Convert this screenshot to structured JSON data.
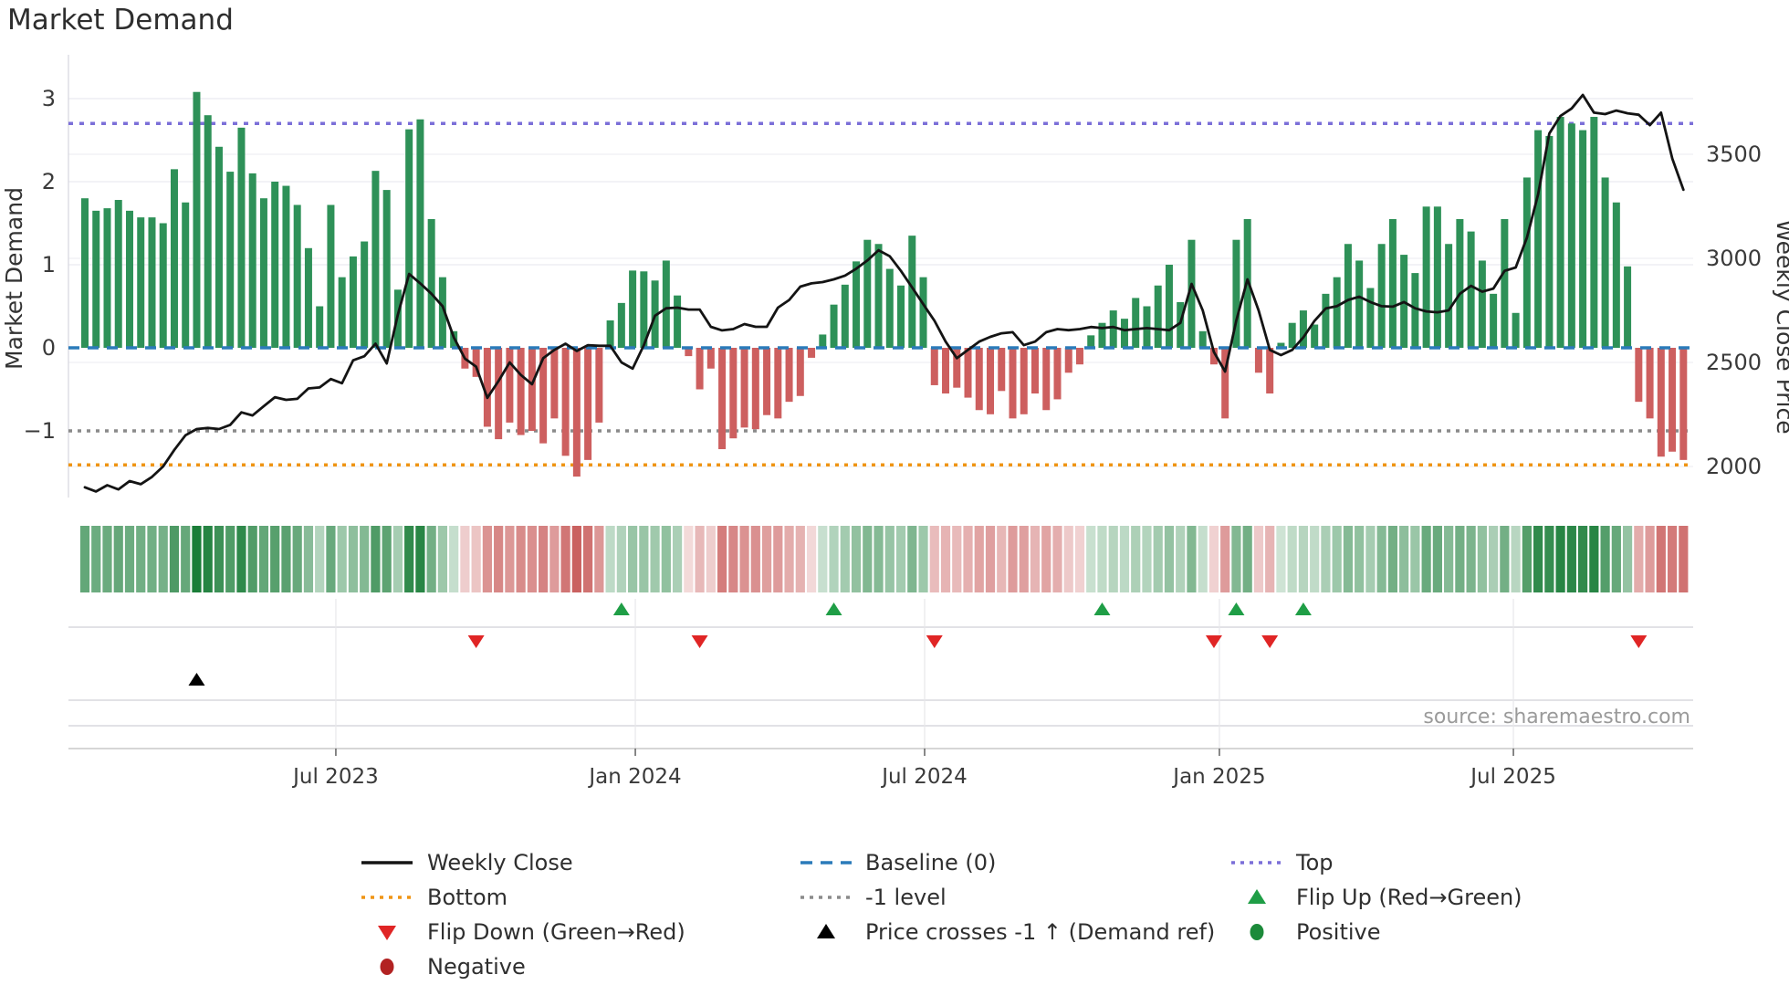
{
  "title": "Market Demand",
  "source": "source: sharemaestro.com",
  "colors": {
    "bar_positive": "#2e9158",
    "bar_negative": "#cd5f5f",
    "price_line": "#141414",
    "baseline": "#2b7bba",
    "top_line": "#7b6fd8",
    "bottom_line": "#ef9413",
    "minus_one_line": "#8a8a8a",
    "flip_up": "#1f9e46",
    "flip_down": "#e02525",
    "price_cross": "#000000",
    "positive_dot": "#1c8a3a",
    "negative_dot": "#b22222",
    "grid": "#ebebf0",
    "panel_line": "#d9d9de",
    "axis_line": "#c9c9c9",
    "axis_text": "#3a3a3a",
    "title_text": "#2e2e2e",
    "source_text": "#9a9a9a",
    "heat_green": [
      26,
      125,
      56
    ],
    "heat_red": [
      201,
      93,
      92
    ]
  },
  "chart_data": {
    "type": "bar+line",
    "title": "Market Demand",
    "frequency": "weekly",
    "yaxis_left": {
      "label": "Market Demand",
      "range": [
        -1.8,
        3.42
      ],
      "ticks": [
        {
          "v": 3,
          "label": "3"
        },
        {
          "v": 2,
          "label": "2"
        },
        {
          "v": 1,
          "label": "1"
        },
        {
          "v": 0,
          "label": "0"
        },
        {
          "v": -1,
          "label": "−1"
        }
      ]
    },
    "yaxis_right": {
      "label": "Weekly Close Price",
      "range": [
        1850,
        3935
      ],
      "ticks": [
        {
          "v": 3500,
          "label": "3500"
        },
        {
          "v": 3000,
          "label": "3000"
        },
        {
          "v": 2500,
          "label": "2500"
        },
        {
          "v": 2000,
          "label": "2000"
        }
      ]
    },
    "xaxis": {
      "ticks": [
        {
          "i": 22.45,
          "label": "Jul 2023"
        },
        {
          "i": 49.24,
          "label": "Jan 2024"
        },
        {
          "i": 75.12,
          "label": "Jul 2024"
        },
        {
          "i": 101.49,
          "label": "Jan 2025"
        },
        {
          "i": 127.79,
          "label": "Jul 2025"
        }
      ]
    },
    "reference_lines": {
      "top": 2.7,
      "baseline": 0,
      "minus_one": -1,
      "bottom": -1.41
    },
    "series": [
      {
        "name": "Market Demand",
        "type": "bar",
        "values": [
          1.8,
          1.65,
          1.68,
          1.78,
          1.65,
          1.57,
          1.57,
          1.5,
          2.15,
          1.75,
          3.08,
          2.8,
          2.42,
          2.12,
          2.65,
          2.1,
          1.8,
          2.0,
          1.95,
          1.72,
          1.2,
          0.5,
          1.72,
          0.85,
          1.1,
          1.28,
          2.13,
          1.9,
          0.7,
          2.63,
          2.75,
          1.55,
          0.85,
          0.2,
          -0.25,
          -0.35,
          -0.95,
          -1.1,
          -0.9,
          -1.05,
          -1.0,
          -1.15,
          -0.85,
          -1.3,
          -1.55,
          -1.35,
          -0.9,
          0.33,
          0.54,
          0.93,
          0.92,
          0.81,
          1.05,
          0.63,
          -0.1,
          -0.5,
          -0.25,
          -1.22,
          -1.09,
          -0.96,
          -0.98,
          -0.81,
          -0.85,
          -0.65,
          -0.58,
          -0.12,
          0.16,
          0.52,
          0.76,
          1.04,
          1.3,
          1.25,
          0.95,
          0.75,
          1.35,
          0.85,
          -0.45,
          -0.55,
          -0.48,
          -0.6,
          -0.75,
          -0.8,
          -0.52,
          -0.85,
          -0.8,
          -0.55,
          -0.75,
          -0.62,
          -0.3,
          -0.2,
          0.15,
          0.3,
          0.45,
          0.35,
          0.6,
          0.5,
          0.75,
          1.0,
          0.55,
          1.3,
          0.2,
          -0.2,
          -0.85,
          1.3,
          1.55,
          -0.3,
          -0.55,
          0.06,
          0.3,
          0.45,
          0.28,
          0.65,
          0.85,
          1.25,
          1.05,
          0.72,
          1.25,
          1.55,
          1.12,
          0.9,
          1.7,
          1.7,
          1.25,
          1.55,
          1.4,
          1.05,
          0.65,
          1.55,
          0.42,
          2.05,
          2.62,
          2.55,
          2.78,
          2.7,
          2.62,
          2.78,
          2.05,
          1.75,
          0.98,
          -0.65,
          -0.85,
          -1.31,
          -1.25,
          -1.35
        ]
      },
      {
        "name": "Weekly Close",
        "type": "line",
        "values": [
          1900,
          1880,
          1910,
          1890,
          1930,
          1915,
          1950,
          2000,
          2080,
          2150,
          2180,
          2185,
          2180,
          2200,
          2260,
          2245,
          2290,
          2333,
          2320,
          2325,
          2375,
          2380,
          2420,
          2400,
          2510,
          2530,
          2590,
          2495,
          2730,
          2925,
          2880,
          2830,
          2770,
          2620,
          2518,
          2480,
          2330,
          2410,
          2500,
          2440,
          2395,
          2520,
          2560,
          2590,
          2555,
          2583,
          2580,
          2580,
          2500,
          2470,
          2583,
          2724,
          2760,
          2763,
          2754,
          2754,
          2671,
          2654,
          2660,
          2684,
          2671,
          2671,
          2763,
          2800,
          2864,
          2880,
          2886,
          2899,
          2917,
          2950,
          2990,
          3039,
          3010,
          2940,
          2860,
          2780,
          2700,
          2600,
          2520,
          2560,
          2600,
          2623,
          2640,
          2645,
          2583,
          2600,
          2645,
          2660,
          2655,
          2660,
          2670,
          2665,
          2670,
          2655,
          2660,
          2665,
          2660,
          2655,
          2690,
          2877,
          2750,
          2550,
          2456,
          2700,
          2899,
          2750,
          2560,
          2535,
          2560,
          2620,
          2700,
          2759,
          2770,
          2800,
          2816,
          2790,
          2770,
          2768,
          2790,
          2760,
          2745,
          2741,
          2750,
          2830,
          2868,
          2840,
          2855,
          2940,
          2956,
          3100,
          3307,
          3600,
          3684,
          3720,
          3785,
          3700,
          3693,
          3710,
          3697,
          3690,
          3640,
          3700,
          3480,
          3330
        ]
      }
    ],
    "heatmap": {
      "description": "demand value per week rendered as green/red intensity strip"
    },
    "markers": {
      "flip_up_indices": [
        48,
        67,
        91,
        103,
        109
      ],
      "flip_down_indices": [
        35,
        55,
        76,
        101,
        106,
        139
      ],
      "price_cross_index": 10
    },
    "legend": {
      "items": [
        {
          "swatch": "line-black",
          "label": "Weekly Close",
          "col": 0,
          "row": 0
        },
        {
          "swatch": "dash-blue",
          "label": "Baseline (0)",
          "col": 1,
          "row": 0
        },
        {
          "swatch": "dot-purple",
          "label": "Top",
          "col": 2,
          "row": 0
        },
        {
          "swatch": "dot-orange",
          "label": "Bottom",
          "col": 0,
          "row": 1
        },
        {
          "swatch": "dot-gray",
          "label": "-1 level",
          "col": 1,
          "row": 1
        },
        {
          "swatch": "tri-up-green",
          "label": "Flip Up (Red→Green)",
          "col": 2,
          "row": 1
        },
        {
          "swatch": "tri-down-red",
          "label": "Flip Down (Green→Red)",
          "col": 0,
          "row": 2
        },
        {
          "swatch": "tri-up-black",
          "label": "Price crosses -1 ↑ (Demand ref)",
          "col": 1,
          "row": 2
        },
        {
          "swatch": "circle-green",
          "label": "Positive",
          "col": 2,
          "row": 2
        },
        {
          "swatch": "circle-darkred",
          "label": "Negative",
          "col": 0,
          "row": 3
        }
      ]
    }
  }
}
